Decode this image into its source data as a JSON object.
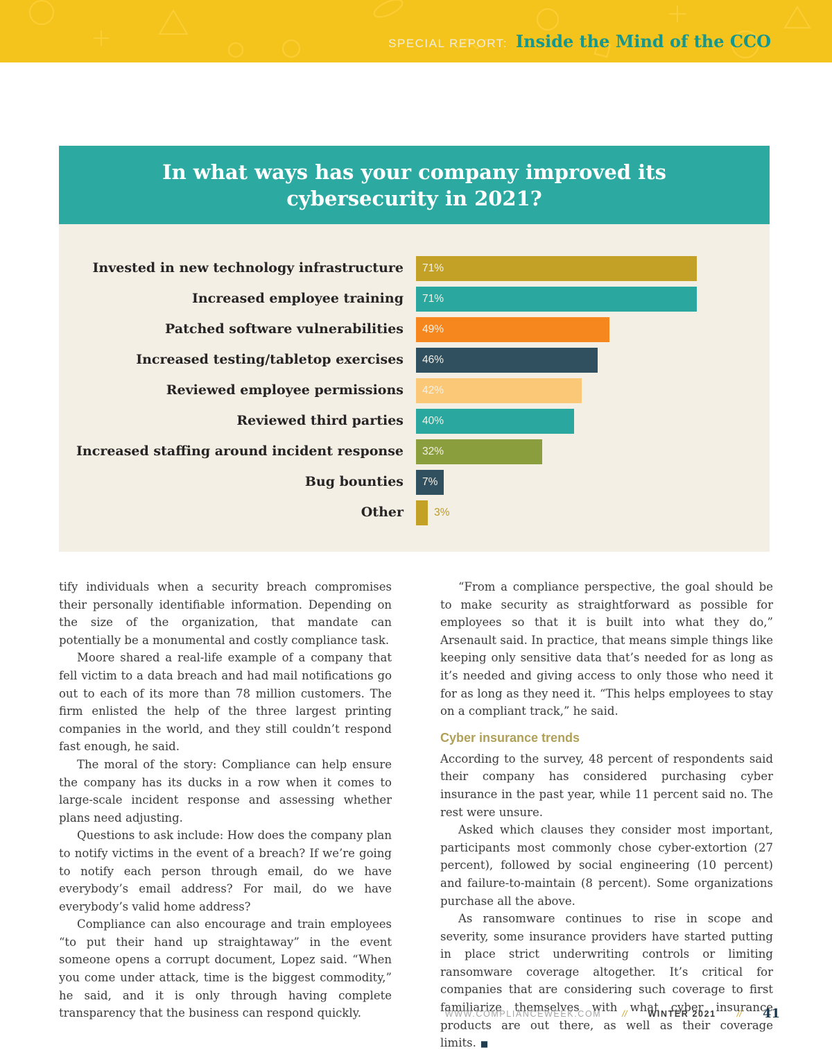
{
  "header": {
    "kicker": "SPECIAL REPORT:",
    "title": "Inside the Mind of the CCO"
  },
  "chart_data": {
    "type": "bar",
    "orientation": "horizontal",
    "title": "In what ways has your company improved its cybersecurity in 2021?",
    "categories": [
      "Invested in new technology infrastructure",
      "Increased employee training",
      "Patched software vulnerabilities",
      "Increased testing/tabletop exercises",
      "Reviewed employee permissions",
      "Reviewed third parties",
      "Increased staffing around incident response",
      "Bug bounties",
      "Other"
    ],
    "values": [
      71,
      71,
      49,
      46,
      42,
      40,
      32,
      7,
      3
    ],
    "value_suffix": "%",
    "colors": [
      "#c3a126",
      "#2aa89f",
      "#f6871f",
      "#31505f",
      "#fbc878",
      "#2aa89f",
      "#8a9e3d",
      "#31505f",
      "#c3a126"
    ],
    "xlim": [
      0,
      86
    ],
    "value_labels_shown": true,
    "legend": "none",
    "grid": false,
    "header_background": "#2caaa1",
    "plot_background": "#f3efe4"
  },
  "article": {
    "left": [
      "tify individuals when a security breach compromises their personally identifiable information. Depending on the size of the organization, that mandate can potentially be a monumental and costly compliance task.",
      "Moore shared a real-life example of a company that fell victim to a data breach and had mail notifications go out to each of its more than 78 million customers. The firm enlisted the help of the three largest printing companies in the world, and they still couldn’t respond fast enough, he said.",
      "The moral of the story: Compliance can help ensure the company has its ducks in a row when it comes to large-scale incident response and assessing whether plans need adjusting.",
      "Questions to ask include: How does the company plan to notify victims in the event of a breach? If we’re going to notify each person through email, do we have everybody’s email address? For mail, do we have everybody’s valid home address?",
      "Compliance can also encourage and train employees “to put their hand up straightaway” in the event someone opens a corrupt document, Lopez said. “When you come under attack, time is the biggest commodity,” he said, and it is only through having complete transparency that the business can respond quickly."
    ],
    "right_top": [
      "“From a compliance perspective, the goal should be to make security as straightforward as possible for employees so that it is built into what they do,” Arsenault said. In practice, that means simple things like keeping only sensitive data that’s needed for as long as it’s needed and giving access to only those who need it for as long as they need it. “This helps employees to stay on a compliant track,” he said."
    ],
    "section_heading": "Cyber insurance trends",
    "right_bottom": [
      "According to the survey, 48 percent of respondents said their company has considered purchasing cyber insurance in the past year, while 11 percent said no. The rest were unsure.",
      "Asked which clauses they consider most important, participants most commonly chose cyber-extortion (27 percent), followed by social engineering (10 percent) and failure-to-maintain (8 percent). Some organizations purchase all the above.",
      "As ransomware continues to rise in scope and severity, some insurance providers have started putting in place strict underwriting controls or limiting ransomware coverage altogether. It’s critical for companies that are considering such coverage to first familiarize themselves with what cyber insurance products are out there, as well as their coverage limits."
    ],
    "end_mark": "■"
  },
  "footer": {
    "site": "WWW.COMPLIANCEWEEK.COM",
    "sep": "//",
    "issue": "WINTER 2021",
    "page": "41"
  }
}
